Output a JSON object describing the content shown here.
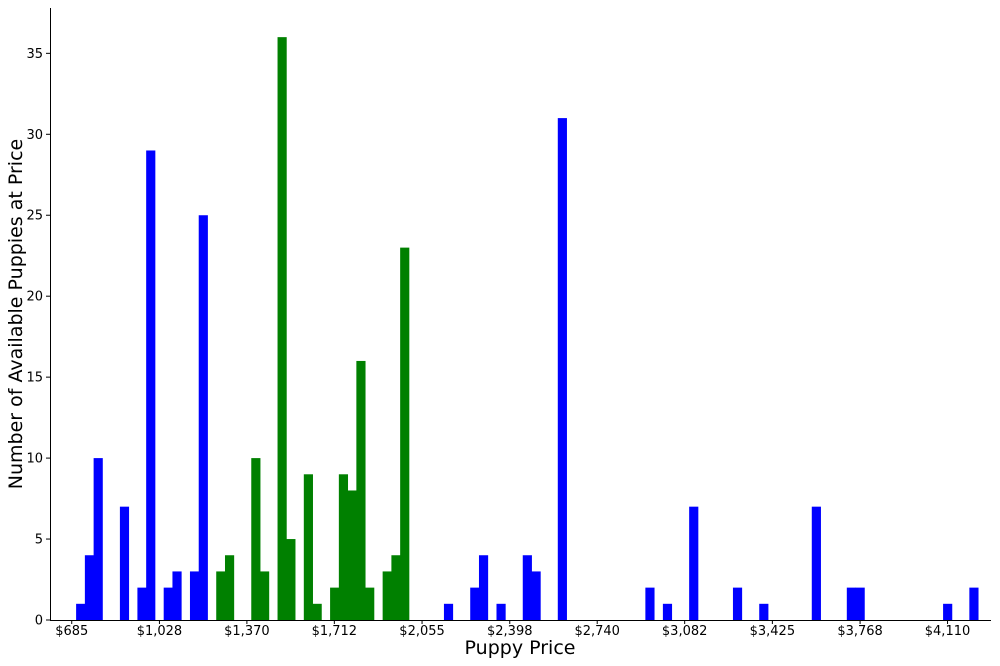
{
  "chart_data": {
    "type": "bar",
    "xlabel": "Puppy Price",
    "ylabel": "Number of Available Puppies at Price",
    "x_tick_labels": [
      "$685",
      "$1,028",
      "$1,370",
      "$1,712",
      "$2,055",
      "$2,398",
      "$2,740",
      "$3,082",
      "$3,425",
      "$3,768",
      "$4,110"
    ],
    "x_tick_values": [
      685,
      1028,
      1370,
      1712,
      2055,
      2398,
      2740,
      3082,
      3425,
      3768,
      4110
    ],
    "xlim": [
      600,
      4280
    ],
    "ylim": [
      0,
      37.8
    ],
    "y_ticks": [
      0,
      5,
      10,
      15,
      20,
      25,
      30,
      35
    ],
    "bar_width": 34.3,
    "series_colors": {
      "outside": "#0000ff",
      "middle": "#008000"
    },
    "series": [
      {
        "color": "outside",
        "bars": [
          {
            "x": 719.25,
            "y": 1
          },
          {
            "x": 753.5,
            "y": 4
          },
          {
            "x": 787.75,
            "y": 10
          },
          {
            "x": 890.5,
            "y": 7
          },
          {
            "x": 959.0,
            "y": 2
          },
          {
            "x": 993.25,
            "y": 29
          },
          {
            "x": 1061.75,
            "y": 2
          },
          {
            "x": 1096.0,
            "y": 3
          },
          {
            "x": 1164.5,
            "y": 3
          },
          {
            "x": 1198.75,
            "y": 25
          },
          {
            "x": 2157.75,
            "y": 1
          },
          {
            "x": 2260.5,
            "y": 2
          },
          {
            "x": 2294.75,
            "y": 4
          },
          {
            "x": 2363.25,
            "y": 1
          },
          {
            "x": 2466.0,
            "y": 4
          },
          {
            "x": 2500.25,
            "y": 3
          },
          {
            "x": 2603.0,
            "y": 31
          },
          {
            "x": 2945.5,
            "y": 2
          },
          {
            "x": 3014.0,
            "y": 1
          },
          {
            "x": 3116.75,
            "y": 7
          },
          {
            "x": 3288.0,
            "y": 2
          },
          {
            "x": 3390.75,
            "y": 1
          },
          {
            "x": 3596.25,
            "y": 7
          },
          {
            "x": 3733.25,
            "y": 2
          },
          {
            "x": 3767.5,
            "y": 2
          },
          {
            "x": 4109.75,
            "y": 1
          },
          {
            "x": 4212.5,
            "y": 2
          }
        ]
      },
      {
        "color": "middle",
        "bars": [
          {
            "x": 1267.25,
            "y": 3
          },
          {
            "x": 1301.5,
            "y": 4
          },
          {
            "x": 1404.25,
            "y": 10
          },
          {
            "x": 1438.5,
            "y": 3
          },
          {
            "x": 1507.0,
            "y": 36
          },
          {
            "x": 1541.25,
            "y": 5
          },
          {
            "x": 1609.75,
            "y": 9
          },
          {
            "x": 1644.0,
            "y": 1
          },
          {
            "x": 1712.5,
            "y": 2
          },
          {
            "x": 1746.75,
            "y": 9
          },
          {
            "x": 1781.0,
            "y": 8
          },
          {
            "x": 1815.25,
            "y": 16
          },
          {
            "x": 1849.5,
            "y": 2
          },
          {
            "x": 1918.0,
            "y": 3
          },
          {
            "x": 1952.25,
            "y": 4
          },
          {
            "x": 1986.5,
            "y": 23
          }
        ]
      }
    ]
  }
}
